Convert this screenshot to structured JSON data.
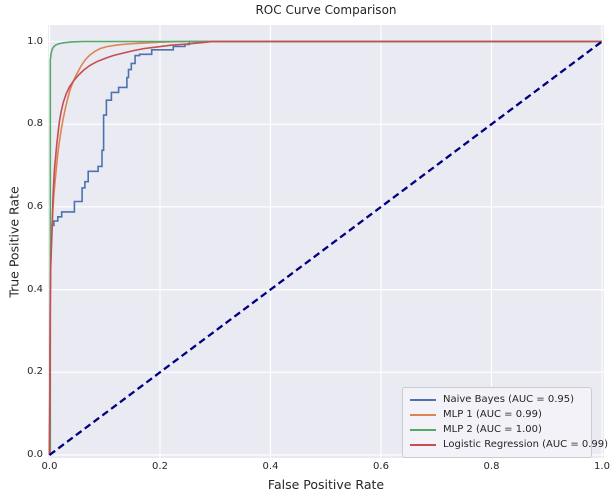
{
  "colors": {
    "figure_bg": "#FFFFFF",
    "axes_bg": "#EAEAF2",
    "grid": "#FFFFFF",
    "text": "#262626",
    "legend_bg": "#F2F2F8",
    "legend_border": "#CCCCCC",
    "naive_bayes": "#4C72B0",
    "mlp1": "#DD8452",
    "mlp2": "#55A868",
    "logistic_regression": "#C44E52",
    "chance_diagonal": "#000080"
  },
  "chart_data": {
    "type": "line",
    "title": "ROC Curve Comparison",
    "xlabel": "False Positive Rate",
    "ylabel": "True Positive Rate",
    "xlim": [
      0.0,
      1.0
    ],
    "ylim": [
      0.0,
      1.04
    ],
    "xticks": [
      0.0,
      0.2,
      0.4,
      0.6,
      0.8,
      1.0
    ],
    "yticks": [
      0.0,
      0.2,
      0.4,
      0.6,
      0.8,
      1.0
    ],
    "xtick_labels": [
      "0.0",
      "0.2",
      "0.4",
      "0.6",
      "0.8",
      "1.0"
    ],
    "ytick_labels": [
      "0.0",
      "0.2",
      "0.4",
      "0.6",
      "0.8",
      "1.0"
    ],
    "grid": true,
    "legend_position": "lower right",
    "series": [
      {
        "slug": "naive-bayes",
        "name": "Naive Bayes (AUC = 0.95)",
        "auc": 0.95,
        "color": "#4C72B0",
        "dashed": false,
        "in_legend": true,
        "points": [
          [
            0,
            0
          ],
          [
            0.0015,
            0.455
          ],
          [
            0.0015,
            0.555
          ],
          [
            0.008,
            0.555
          ],
          [
            0.008,
            0.566
          ],
          [
            0.015,
            0.566
          ],
          [
            0.015,
            0.576
          ],
          [
            0.022,
            0.576
          ],
          [
            0.022,
            0.588
          ],
          [
            0.045,
            0.588
          ],
          [
            0.045,
            0.613
          ],
          [
            0.059,
            0.613
          ],
          [
            0.059,
            0.646
          ],
          [
            0.064,
            0.646
          ],
          [
            0.064,
            0.661
          ],
          [
            0.07,
            0.661
          ],
          [
            0.07,
            0.686
          ],
          [
            0.088,
            0.686
          ],
          [
            0.088,
            0.698
          ],
          [
            0.095,
            0.698
          ],
          [
            0.095,
            0.737
          ],
          [
            0.098,
            0.737
          ],
          [
            0.098,
            0.822
          ],
          [
            0.103,
            0.822
          ],
          [
            0.103,
            0.858
          ],
          [
            0.112,
            0.858
          ],
          [
            0.112,
            0.877
          ],
          [
            0.125,
            0.877
          ],
          [
            0.125,
            0.889
          ],
          [
            0.14,
            0.889
          ],
          [
            0.14,
            0.913
          ],
          [
            0.143,
            0.913
          ],
          [
            0.143,
            0.932
          ],
          [
            0.148,
            0.932
          ],
          [
            0.148,
            0.947
          ],
          [
            0.155,
            0.947
          ],
          [
            0.155,
            0.966
          ],
          [
            0.163,
            0.966
          ],
          [
            0.163,
            0.969
          ],
          [
            0.185,
            0.969
          ],
          [
            0.185,
            0.98
          ],
          [
            0.224,
            0.98
          ],
          [
            0.224,
            0.988
          ],
          [
            0.245,
            0.988
          ],
          [
            0.245,
            0.993
          ],
          [
            0.253,
            0.993
          ],
          [
            0.253,
            1.0
          ],
          [
            1,
            1
          ]
        ]
      },
      {
        "slug": "mlp-1",
        "name": "MLP 1 (AUC = 0.99)",
        "auc": 0.99,
        "color": "#DD8452",
        "dashed": false,
        "in_legend": true,
        "points": [
          [
            0,
            0
          ],
          [
            0.001,
            0.3
          ],
          [
            0.0015,
            0.38
          ],
          [
            0.002,
            0.44
          ],
          [
            0.003,
            0.5
          ],
          [
            0.004,
            0.545
          ],
          [
            0.006,
            0.59
          ],
          [
            0.008,
            0.63
          ],
          [
            0.011,
            0.675
          ],
          [
            0.014,
            0.715
          ],
          [
            0.017,
            0.75
          ],
          [
            0.021,
            0.785
          ],
          [
            0.025,
            0.815
          ],
          [
            0.029,
            0.84
          ],
          [
            0.033,
            0.862
          ],
          [
            0.037,
            0.882
          ],
          [
            0.042,
            0.9
          ],
          [
            0.048,
            0.918
          ],
          [
            0.054,
            0.933
          ],
          [
            0.06,
            0.947
          ],
          [
            0.066,
            0.958
          ],
          [
            0.073,
            0.967
          ],
          [
            0.082,
            0.976
          ],
          [
            0.092,
            0.983
          ],
          [
            0.105,
            0.988
          ],
          [
            0.12,
            0.991
          ],
          [
            0.14,
            0.994
          ],
          [
            0.165,
            0.996
          ],
          [
            0.195,
            0.998
          ],
          [
            0.235,
            1.0
          ],
          [
            1,
            1
          ]
        ]
      },
      {
        "slug": "mlp-2",
        "name": "MLP 2 (AUC = 1.00)",
        "auc": 1.0,
        "color": "#55A868",
        "dashed": false,
        "in_legend": true,
        "points": [
          [
            0,
            0
          ],
          [
            0.0015,
            0
          ],
          [
            0.0015,
            0.955
          ],
          [
            0.003,
            0.972
          ],
          [
            0.005,
            0.982
          ],
          [
            0.008,
            0.988
          ],
          [
            0.012,
            0.992
          ],
          [
            0.018,
            0.995
          ],
          [
            0.027,
            0.997
          ],
          [
            0.04,
            0.999
          ],
          [
            0.06,
            1.0
          ],
          [
            1,
            1
          ]
        ]
      },
      {
        "slug": "logistic-regression",
        "name": "Logistic Regression (AUC = 0.99)",
        "auc": 0.99,
        "color": "#C44E52",
        "dashed": false,
        "in_legend": true,
        "points": [
          [
            0,
            0
          ],
          [
            0.0008,
            0.117
          ],
          [
            0.0012,
            0.25
          ],
          [
            0.0015,
            0.35
          ],
          [
            0.002,
            0.45
          ],
          [
            0.0035,
            0.5
          ],
          [
            0.005,
            0.555
          ],
          [
            0.006,
            0.61
          ],
          [
            0.0075,
            0.655
          ],
          [
            0.009,
            0.693
          ],
          [
            0.011,
            0.72
          ],
          [
            0.013,
            0.75
          ],
          [
            0.0155,
            0.78
          ],
          [
            0.018,
            0.806
          ],
          [
            0.021,
            0.83
          ],
          [
            0.025,
            0.853
          ],
          [
            0.03,
            0.873
          ],
          [
            0.036,
            0.89
          ],
          [
            0.043,
            0.904
          ],
          [
            0.052,
            0.918
          ],
          [
            0.062,
            0.931
          ],
          [
            0.073,
            0.942
          ],
          [
            0.085,
            0.951
          ],
          [
            0.1,
            0.959
          ],
          [
            0.115,
            0.966
          ],
          [
            0.133,
            0.972
          ],
          [
            0.152,
            0.978
          ],
          [
            0.172,
            0.983
          ],
          [
            0.195,
            0.987
          ],
          [
            0.22,
            0.991
          ],
          [
            0.25,
            0.994
          ],
          [
            0.275,
            0.997
          ],
          [
            0.295,
            1.0
          ],
          [
            1,
            1
          ]
        ]
      },
      {
        "slug": "chance-diagonal",
        "name": "chance-diagonal",
        "color": "#000080",
        "dashed": true,
        "in_legend": false,
        "points": [
          [
            0,
            0
          ],
          [
            1,
            1
          ]
        ]
      }
    ]
  }
}
